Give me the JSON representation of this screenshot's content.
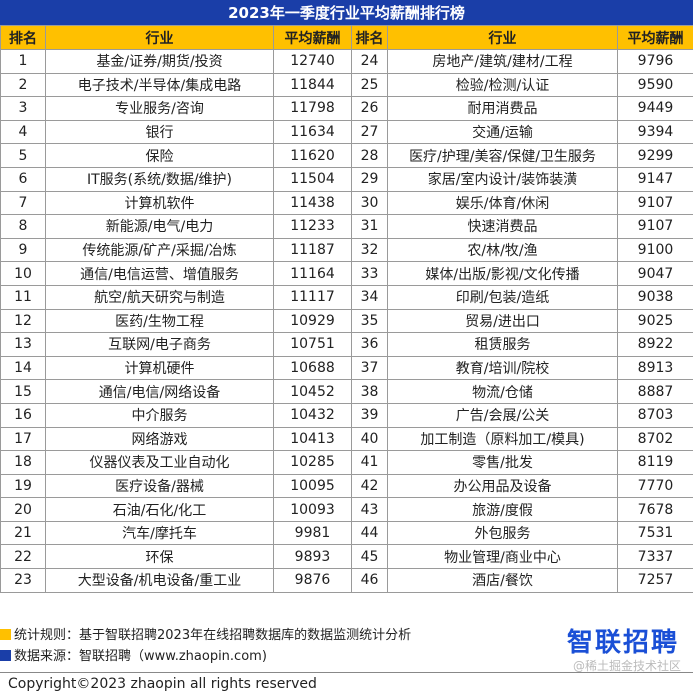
{
  "title": "2023年一季度行业平均薪酬排行榜",
  "columns": [
    "排名",
    "行业",
    "平均薪酬",
    "排名",
    "行业",
    "平均薪酬"
  ],
  "colors": {
    "title_bg": "#1a3ea8",
    "header_bg": "#ffc000",
    "note1_mark": "#ffc000",
    "note2_mark": "#1a3ea8",
    "logo": "#1a4fd6"
  },
  "chart_data": {
    "type": "table",
    "title": "2023年一季度行业平均薪酬排行榜",
    "columns": [
      "排名",
      "行业",
      "平均薪酬"
    ],
    "rows": [
      [
        1,
        "基金/证券/期货/投资",
        12740
      ],
      [
        2,
        "电子技术/半导体/集成电路",
        11844
      ],
      [
        3,
        "专业服务/咨询",
        11798
      ],
      [
        4,
        "银行",
        11634
      ],
      [
        5,
        "保险",
        11620
      ],
      [
        6,
        "IT服务(系统/数据/维护)",
        11504
      ],
      [
        7,
        "计算机软件",
        11438
      ],
      [
        8,
        "新能源/电气/电力",
        11233
      ],
      [
        9,
        "传统能源/矿产/采掘/冶炼",
        11187
      ],
      [
        10,
        "通信/电信运营、增值服务",
        11164
      ],
      [
        11,
        "航空/航天研究与制造",
        11117
      ],
      [
        12,
        "医药/生物工程",
        10929
      ],
      [
        13,
        "互联网/电子商务",
        10751
      ],
      [
        14,
        "计算机硬件",
        10688
      ],
      [
        15,
        "通信/电信/网络设备",
        10452
      ],
      [
        16,
        "中介服务",
        10432
      ],
      [
        17,
        "网络游戏",
        10413
      ],
      [
        18,
        "仪器仪表及工业自动化",
        10285
      ],
      [
        19,
        "医疗设备/器械",
        10095
      ],
      [
        20,
        "石油/石化/化工",
        10093
      ],
      [
        21,
        "汽车/摩托车",
        9981
      ],
      [
        22,
        "环保",
        9893
      ],
      [
        23,
        "大型设备/机电设备/重工业",
        9876
      ],
      [
        24,
        "房地产/建筑/建材/工程",
        9796
      ],
      [
        25,
        "检验/检测/认证",
        9590
      ],
      [
        26,
        "耐用消费品",
        9449
      ],
      [
        27,
        "交通/运输",
        9394
      ],
      [
        28,
        "医疗/护理/美容/保健/卫生服务",
        9299
      ],
      [
        29,
        "家居/室内设计/装饰装潢",
        9147
      ],
      [
        30,
        "娱乐/体育/休闲",
        9107
      ],
      [
        31,
        "快速消费品",
        9107
      ],
      [
        32,
        "农/林/牧/渔",
        9100
      ],
      [
        33,
        "媒体/出版/影视/文化传播",
        9047
      ],
      [
        34,
        "印刷/包装/造纸",
        9038
      ],
      [
        35,
        "贸易/进出口",
        9025
      ],
      [
        36,
        "租赁服务",
        8922
      ],
      [
        37,
        "教育/培训/院校",
        8913
      ],
      [
        38,
        "物流/仓储",
        8887
      ],
      [
        39,
        "广告/会展/公关",
        8703
      ],
      [
        40,
        "加工制造（原料加工/模具)",
        8702
      ],
      [
        41,
        "零售/批发",
        8119
      ],
      [
        42,
        "办公用品及设备",
        7770
      ],
      [
        43,
        "旅游/度假",
        7678
      ],
      [
        44,
        "外包服务",
        7531
      ],
      [
        45,
        "物业管理/商业中心",
        7337
      ],
      [
        46,
        "酒店/餐饮",
        7257
      ]
    ]
  },
  "notes": {
    "rule": "统计规则：基于智联招聘2023年在线招聘数据库的数据监测统计分析",
    "source": "数据来源：智联招聘（www.zhaopin.com)"
  },
  "logo_text": "智联招聘",
  "watermark": "@稀土掘金技术社区",
  "copyright": "Copyright©2023 zhaopin all rights reserved"
}
